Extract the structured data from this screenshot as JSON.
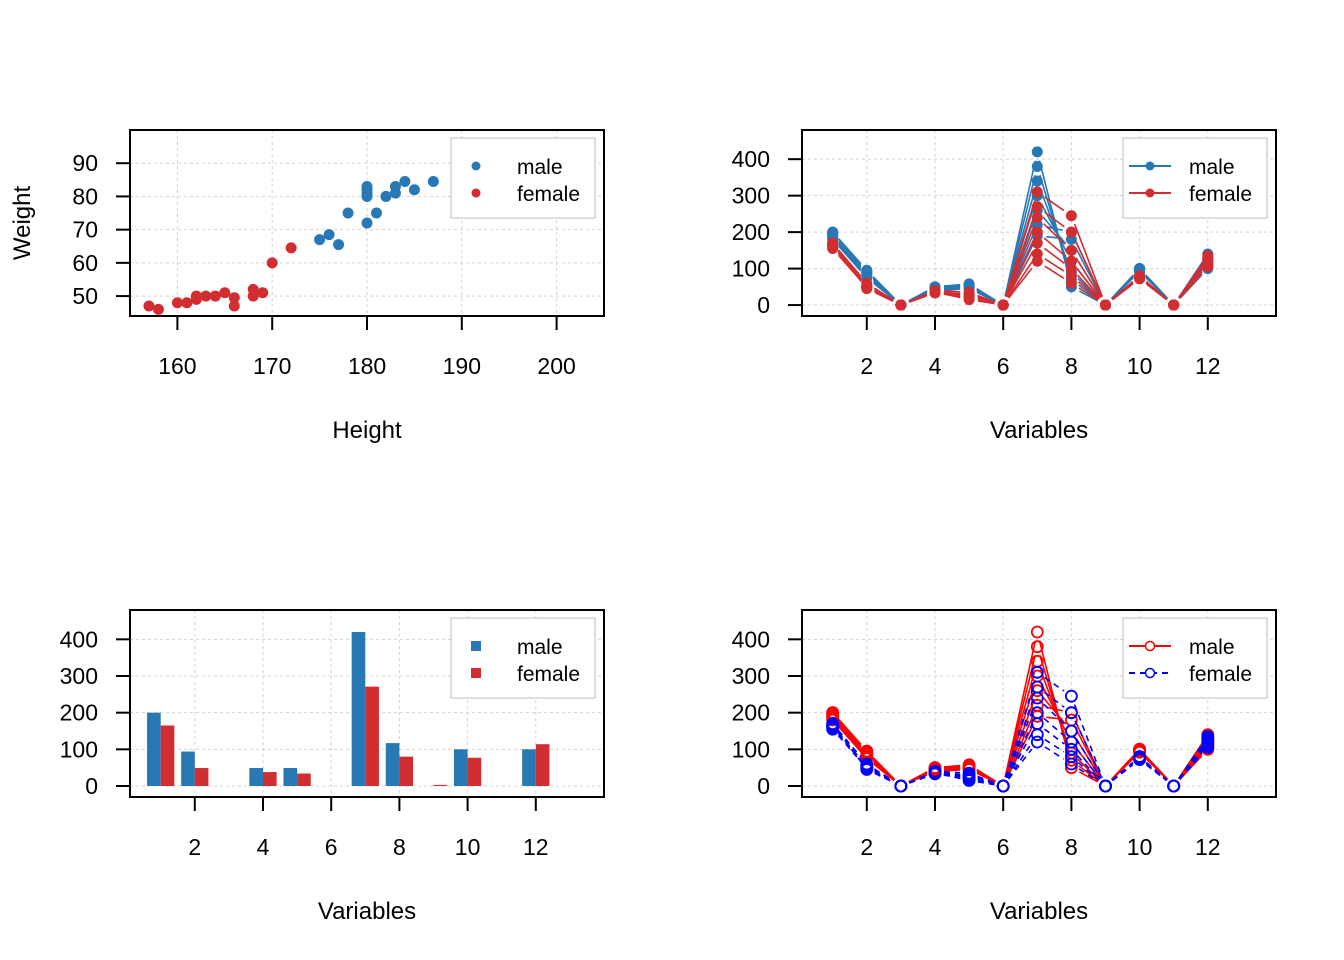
{
  "colors": {
    "male_primary": "#2878B5",
    "female_primary": "#D22D30",
    "male_alt": "#FF0000",
    "female_alt": "#0000FF",
    "grid": "#D3D3D3",
    "legend_border": "#BEBEBE"
  },
  "chart_data": [
    {
      "id": "scatter",
      "type": "scatter",
      "title": "",
      "xlabel": "Height",
      "ylabel": "Weight",
      "xlim": [
        155,
        205
      ],
      "ylim": [
        44,
        100
      ],
      "xticks": [
        160,
        170,
        180,
        190,
        200
      ],
      "yticks": [
        50,
        60,
        70,
        80,
        90
      ],
      "grid": true,
      "legend": {
        "position": "top-right",
        "entries": [
          "male",
          "female"
        ]
      },
      "series": [
        {
          "name": "male",
          "points": [
            [
              175,
              67
            ],
            [
              176,
              68.5
            ],
            [
              177,
              65.5
            ],
            [
              178,
              75
            ],
            [
              180,
              72
            ],
            [
              180,
              80
            ],
            [
              180,
              81
            ],
            [
              180,
              82
            ],
            [
              180,
              83
            ],
            [
              181,
              75
            ],
            [
              182,
              80
            ],
            [
              183,
              81
            ],
            [
              183,
              83
            ],
            [
              184,
              84.5
            ],
            [
              185,
              82
            ],
            [
              187,
              84.5
            ]
          ]
        },
        {
          "name": "female",
          "points": [
            [
              157,
              47
            ],
            [
              158,
              46
            ],
            [
              160,
              48
            ],
            [
              161,
              48
            ],
            [
              162,
              49
            ],
            [
              162,
              50
            ],
            [
              163,
              50
            ],
            [
              164,
              50
            ],
            [
              165,
              51
            ],
            [
              166,
              47
            ],
            [
              166,
              49.5
            ],
            [
              168,
              50
            ],
            [
              168,
              52
            ],
            [
              169,
              51
            ],
            [
              170,
              60
            ],
            [
              172,
              64.5
            ]
          ]
        }
      ]
    },
    {
      "id": "lines-filled",
      "type": "line",
      "title": "",
      "xlabel": "Variables",
      "ylabel": "",
      "xlim": [
        0.1,
        14
      ],
      "ylim": [
        -30,
        480
      ],
      "xticks": [
        2,
        4,
        6,
        8,
        10,
        12
      ],
      "yticks": [
        0,
        100,
        200,
        300,
        400
      ],
      "grid": true,
      "legend": {
        "position": "top-right",
        "entries": [
          "male",
          "female"
        ]
      },
      "x": [
        1,
        2,
        3,
        4,
        5,
        6,
        7,
        8,
        9,
        10,
        11,
        12
      ],
      "series": [
        {
          "name": "male",
          "profiles": [
            [
              200,
              95,
              0,
              50,
              55,
              0,
              420,
              50,
              0,
              100,
              0,
              100
            ],
            [
              190,
              85,
              0,
              45,
              50,
              0,
              380,
              70,
              0,
              100,
              0,
              110
            ],
            [
              195,
              90,
              0,
              48,
              52,
              0,
              340,
              90,
              0,
              95,
              0,
              120
            ],
            [
              185,
              80,
              0,
              42,
              48,
              0,
              300,
              120,
              0,
              98,
              0,
              130
            ],
            [
              180,
              75,
              0,
              40,
              45,
              0,
              260,
              150,
              0,
              100,
              0,
              105
            ],
            [
              200,
              95,
              0,
              50,
              58,
              0,
              220,
              200,
              0,
              100,
              0,
              140
            ],
            [
              190,
              88,
              0,
              46,
              50,
              0,
              190,
              180,
              0,
              92,
              0,
              115
            ]
          ]
        },
        {
          "name": "female",
          "profiles": [
            [
              170,
              60,
              0,
              40,
              35,
              0,
              310,
              245,
              0,
              80,
              0,
              130
            ],
            [
              165,
              50,
              0,
              35,
              30,
              0,
              270,
              200,
              0,
              75,
              0,
              120
            ],
            [
              160,
              55,
              0,
              38,
              25,
              0,
              240,
              150,
              0,
              78,
              0,
              110
            ],
            [
              168,
              45,
              0,
              33,
              20,
              0,
              200,
              120,
              0,
              72,
              0,
              125
            ],
            [
              155,
              48,
              0,
              36,
              15,
              0,
              170,
              100,
              0,
              80,
              0,
              115
            ],
            [
              165,
              52,
              0,
              38,
              28,
              0,
              140,
              80,
              0,
              76,
              0,
              105
            ],
            [
              160,
              50,
              0,
              35,
              22,
              0,
              120,
              60,
              0,
              74,
              0,
              135
            ]
          ]
        }
      ]
    },
    {
      "id": "bars",
      "type": "bar",
      "title": "",
      "xlabel": "Variables",
      "ylabel": "",
      "xlim": [
        0.1,
        14
      ],
      "ylim": [
        -30,
        480
      ],
      "xticks": [
        2,
        4,
        6,
        8,
        10,
        12
      ],
      "yticks": [
        0,
        100,
        200,
        300,
        400
      ],
      "grid": true,
      "legend": {
        "position": "top-right",
        "entries": [
          "male",
          "female"
        ]
      },
      "categories": [
        1,
        2,
        3,
        4,
        5,
        6,
        7,
        8,
        9,
        10,
        11,
        12
      ],
      "series": [
        {
          "name": "male",
          "values": [
            200,
            94,
            0,
            49,
            49,
            0,
            420,
            117,
            0,
            100,
            0,
            100
          ]
        },
        {
          "name": "female",
          "values": [
            165,
            49,
            0,
            38,
            34,
            0,
            271,
            80,
            3,
            77,
            0,
            114
          ]
        }
      ]
    },
    {
      "id": "lines-open",
      "type": "line",
      "title": "",
      "xlabel": "Variables",
      "ylabel": "",
      "xlim": [
        0.1,
        14
      ],
      "ylim": [
        -30,
        480
      ],
      "xticks": [
        2,
        4,
        6,
        8,
        10,
        12
      ],
      "yticks": [
        0,
        100,
        200,
        300,
        400
      ],
      "grid": true,
      "legend": {
        "position": "top-right",
        "entries": [
          "male",
          "female"
        ]
      },
      "x": [
        1,
        2,
        3,
        4,
        5,
        6,
        7,
        8,
        9,
        10,
        11,
        12
      ],
      "series": [
        {
          "name": "male",
          "line": "solid",
          "profiles": [
            [
              200,
              95,
              0,
              50,
              55,
              0,
              420,
              50,
              0,
              100,
              0,
              100
            ],
            [
              190,
              85,
              0,
              45,
              50,
              0,
              380,
              70,
              0,
              100,
              0,
              110
            ],
            [
              195,
              90,
              0,
              48,
              52,
              0,
              340,
              90,
              0,
              95,
              0,
              120
            ],
            [
              185,
              80,
              0,
              42,
              48,
              0,
              300,
              120,
              0,
              98,
              0,
              130
            ],
            [
              180,
              75,
              0,
              40,
              45,
              0,
              260,
              150,
              0,
              100,
              0,
              105
            ],
            [
              200,
              95,
              0,
              50,
              58,
              0,
              220,
              200,
              0,
              100,
              0,
              140
            ],
            [
              190,
              88,
              0,
              46,
              50,
              0,
              190,
              180,
              0,
              92,
              0,
              115
            ]
          ]
        },
        {
          "name": "female",
          "line": "dashed",
          "profiles": [
            [
              170,
              60,
              0,
              40,
              35,
              0,
              310,
              245,
              0,
              80,
              0,
              130
            ],
            [
              165,
              50,
              0,
              35,
              30,
              0,
              270,
              200,
              0,
              75,
              0,
              120
            ],
            [
              160,
              55,
              0,
              38,
              25,
              0,
              240,
              150,
              0,
              78,
              0,
              110
            ],
            [
              168,
              45,
              0,
              33,
              20,
              0,
              200,
              120,
              0,
              72,
              0,
              125
            ],
            [
              155,
              48,
              0,
              36,
              15,
              0,
              170,
              100,
              0,
              80,
              0,
              115
            ],
            [
              165,
              52,
              0,
              38,
              28,
              0,
              140,
              80,
              0,
              76,
              0,
              105
            ],
            [
              160,
              50,
              0,
              35,
              22,
              0,
              120,
              60,
              0,
              74,
              0,
              135
            ]
          ]
        }
      ]
    }
  ]
}
